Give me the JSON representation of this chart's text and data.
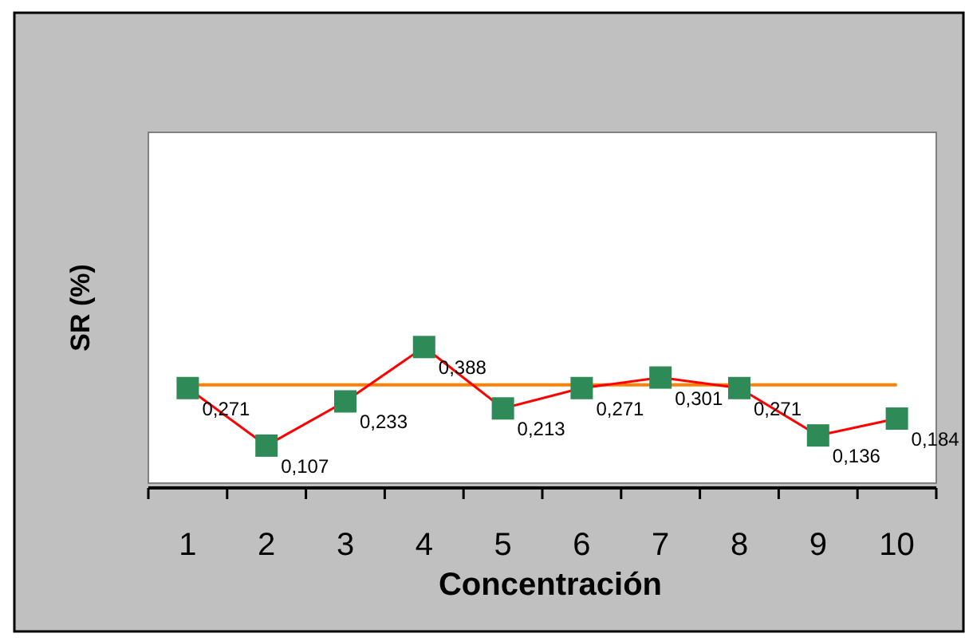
{
  "chart_data": {
    "type": "line",
    "xlabel": "Concentración",
    "ylabel": "SR (%)",
    "categories": [
      "1",
      "2",
      "3",
      "4",
      "5",
      "6",
      "7",
      "8",
      "9",
      "10"
    ],
    "series": [
      {
        "color": "#ff0000",
        "values": [
          0.271,
          0.107,
          0.233,
          0.388,
          0.213,
          0.271,
          0.301,
          0.271,
          0.136,
          0.184
        ],
        "value_labels": [
          "0,271",
          "0,107",
          "0,233",
          "0,388",
          "0,213",
          "0,271",
          "0,301",
          "0,271",
          "0,136",
          "0,184"
        ]
      }
    ],
    "tick_labels": "x",
    "marker": "square",
    "grid": false,
    "ref_lines": [
      {
        "axis": "y",
        "value": 0.28,
        "color": "#ff8000"
      }
    ]
  }
}
